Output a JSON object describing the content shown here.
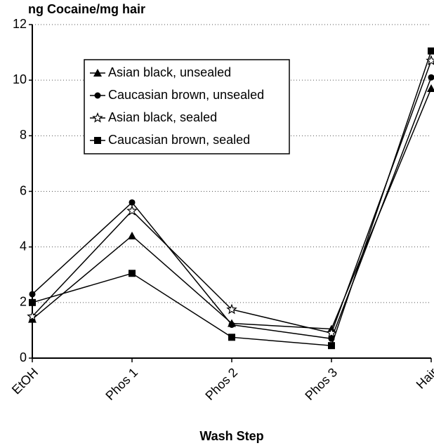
{
  "chart_data": {
    "type": "line",
    "title": "ng Cocaine/mg hair",
    "x_label": "Wash Step",
    "categories": [
      "EtOH",
      "Phos 1",
      "Phos 2",
      "Phos 3",
      "Hair"
    ],
    "series": [
      {
        "name": "Asian black, unsealed",
        "color": "#000000",
        "marker": "triangle",
        "values": [
          1.4,
          4.4,
          1.25,
          1.05,
          9.7
        ]
      },
      {
        "name": "Caucasian brown, unsealed",
        "color": "#000000",
        "marker": "circle",
        "values": [
          2.3,
          5.6,
          1.2,
          0.7,
          10.1
        ]
      },
      {
        "name": "Asian black, sealed",
        "color": "#000000",
        "marker": "star",
        "values": [
          1.5,
          5.3,
          1.75,
          0.9,
          10.7
        ]
      },
      {
        "name": "Caucasian brown, sealed",
        "color": "#000000",
        "marker": "square",
        "values": [
          2.0,
          3.05,
          0.75,
          0.45,
          11.05
        ]
      }
    ],
    "ylim": [
      0,
      12
    ],
    "yticks": [
      0,
      2,
      4,
      6,
      8,
      10,
      12
    ],
    "grid": true
  }
}
